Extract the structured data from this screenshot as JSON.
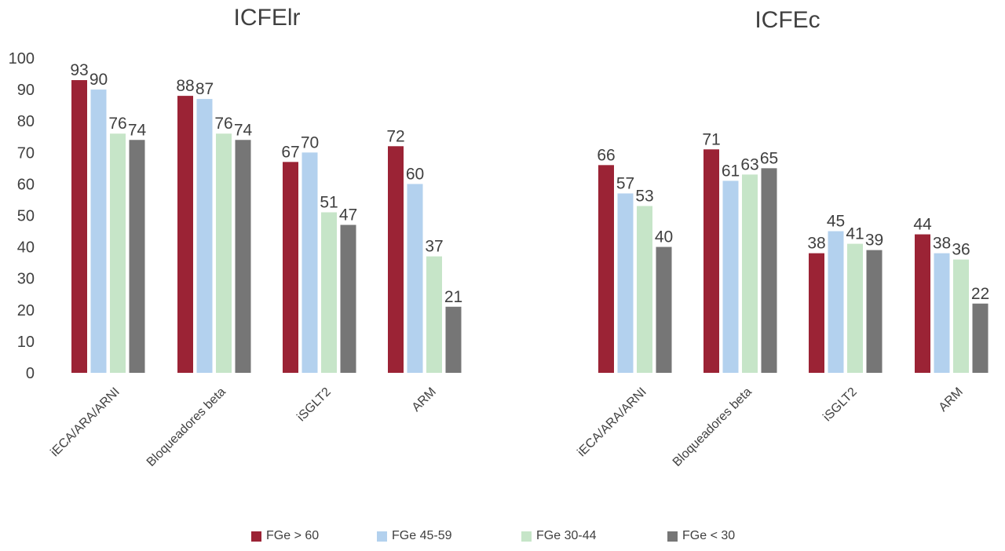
{
  "chart_data": {
    "type": "bar",
    "titles": [
      "ICFElr",
      "ICFEc"
    ],
    "groups": [
      "ICFElr",
      "ICFEc"
    ],
    "categories": [
      "iECA/ARA/ARNI",
      "Bloqueadores beta",
      "iSGLT2",
      "ARM"
    ],
    "yticks": [
      "0",
      "10",
      "20",
      "30",
      "40",
      "50",
      "60",
      "70",
      "80",
      "90",
      "100"
    ],
    "ylim": [
      0,
      100
    ],
    "grid": false,
    "legend_position": "bottom",
    "series": [
      {
        "name": "FGe > 60",
        "color": "#9B2335",
        "values": [
          [
            93,
            88,
            67,
            72
          ],
          [
            66,
            71,
            38,
            44
          ]
        ]
      },
      {
        "name": "FGe 45-59",
        "color": "#B3D1EE",
        "values": [
          [
            90,
            87,
            70,
            60
          ],
          [
            57,
            61,
            45,
            38
          ]
        ]
      },
      {
        "name": "FGe 30-44",
        "color": "#C6E5C8",
        "values": [
          [
            76,
            76,
            51,
            37
          ],
          [
            53,
            63,
            41,
            36
          ]
        ]
      },
      {
        "name": "FGe < 30",
        "color": "#767676",
        "values": [
          [
            74,
            74,
            47,
            21
          ],
          [
            40,
            65,
            39,
            22
          ]
        ]
      }
    ]
  }
}
